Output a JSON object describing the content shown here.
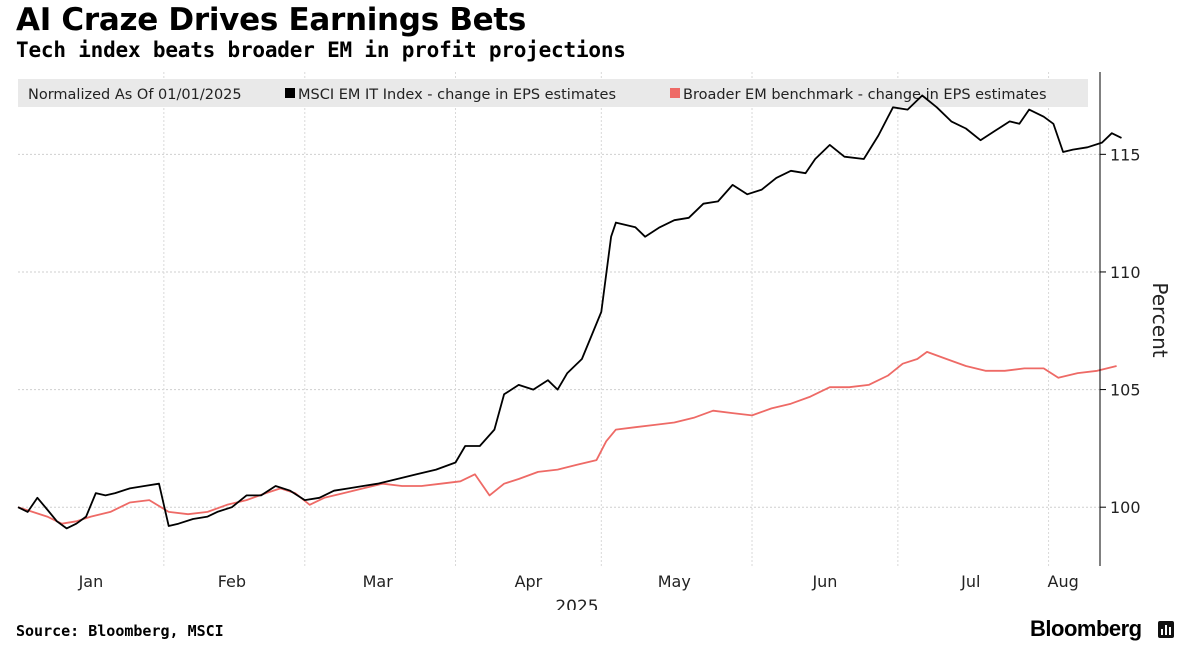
{
  "header": {
    "title": "AI Craze Drives Earnings Bets",
    "subtitle": "Tech index beats broader EM in profit projections"
  },
  "footer": {
    "source": "Source: Bloomberg, MSCI",
    "brand": "Bloomberg"
  },
  "chart_data": {
    "type": "line",
    "title": "AI Craze Drives Earnings Bets",
    "subtitle": "Tech index beats broader EM in profit projections",
    "legend_note": "Normalized As Of 01/01/2025",
    "legend_position": "top",
    "ylabel": "Percent",
    "xlabel": "2025",
    "ylim": [
      97.5,
      118.5
    ],
    "y_ticks": [
      100,
      105,
      110,
      115
    ],
    "x_range": [
      "2025-01-01",
      "2025-08-05"
    ],
    "x_ticks": [
      {
        "label": "Jan",
        "date": "2025-01-16"
      },
      {
        "label": "Feb",
        "date": "2025-02-14"
      },
      {
        "label": "Mar",
        "date": "2025-03-16"
      },
      {
        "label": "Apr",
        "date": "2025-04-16"
      },
      {
        "label": "May",
        "date": "2025-05-16"
      },
      {
        "label": "Jun",
        "date": "2025-06-16"
      },
      {
        "label": "Jul",
        "date": "2025-07-16"
      },
      {
        "label": "Aug",
        "date": "2025-08-04"
      }
    ],
    "grid": true,
    "series": [
      {
        "name": "MSCI EM IT Index - change in EPS estimates",
        "color": "#000000",
        "points": [
          [
            "2025-01-01",
            100.0
          ],
          [
            "2025-01-03",
            99.8
          ],
          [
            "2025-01-05",
            100.4
          ],
          [
            "2025-01-07",
            99.9
          ],
          [
            "2025-01-09",
            99.4
          ],
          [
            "2025-01-11",
            99.1
          ],
          [
            "2025-01-13",
            99.3
          ],
          [
            "2025-01-15",
            99.6
          ],
          [
            "2025-01-17",
            100.6
          ],
          [
            "2025-01-19",
            100.5
          ],
          [
            "2025-01-21",
            100.6
          ],
          [
            "2025-01-24",
            100.8
          ],
          [
            "2025-01-27",
            100.9
          ],
          [
            "2025-01-30",
            101.0
          ],
          [
            "2025-02-01",
            99.2
          ],
          [
            "2025-02-03",
            99.3
          ],
          [
            "2025-02-06",
            99.5
          ],
          [
            "2025-02-09",
            99.6
          ],
          [
            "2025-02-11",
            99.8
          ],
          [
            "2025-02-14",
            100.0
          ],
          [
            "2025-02-17",
            100.5
          ],
          [
            "2025-02-20",
            100.5
          ],
          [
            "2025-02-23",
            100.9
          ],
          [
            "2025-02-26",
            100.7
          ],
          [
            "2025-03-01",
            100.3
          ],
          [
            "2025-03-04",
            100.4
          ],
          [
            "2025-03-07",
            100.7
          ],
          [
            "2025-03-10",
            100.8
          ],
          [
            "2025-03-13",
            100.9
          ],
          [
            "2025-03-16",
            101.0
          ],
          [
            "2025-03-20",
            101.2
          ],
          [
            "2025-03-24",
            101.4
          ],
          [
            "2025-03-28",
            101.6
          ],
          [
            "2025-04-01",
            101.9
          ],
          [
            "2025-04-03",
            102.6
          ],
          [
            "2025-04-06",
            102.6
          ],
          [
            "2025-04-09",
            103.3
          ],
          [
            "2025-04-11",
            104.8
          ],
          [
            "2025-04-14",
            105.2
          ],
          [
            "2025-04-17",
            105.0
          ],
          [
            "2025-04-20",
            105.4
          ],
          [
            "2025-04-22",
            105.0
          ],
          [
            "2025-04-24",
            105.7
          ],
          [
            "2025-04-27",
            106.3
          ],
          [
            "2025-04-29",
            107.3
          ],
          [
            "2025-05-01",
            108.3
          ],
          [
            "2025-05-03",
            111.5
          ],
          [
            "2025-05-04",
            112.1
          ],
          [
            "2025-05-08",
            111.9
          ],
          [
            "2025-05-10",
            111.5
          ],
          [
            "2025-05-13",
            111.9
          ],
          [
            "2025-05-16",
            112.2
          ],
          [
            "2025-05-19",
            112.3
          ],
          [
            "2025-05-22",
            112.9
          ],
          [
            "2025-05-25",
            113.0
          ],
          [
            "2025-05-28",
            113.7
          ],
          [
            "2025-05-31",
            113.3
          ],
          [
            "2025-06-03",
            113.5
          ],
          [
            "2025-06-06",
            114.0
          ],
          [
            "2025-06-09",
            114.3
          ],
          [
            "2025-06-12",
            114.2
          ],
          [
            "2025-06-14",
            114.8
          ],
          [
            "2025-06-17",
            115.4
          ],
          [
            "2025-06-20",
            114.9
          ],
          [
            "2025-06-24",
            114.8
          ],
          [
            "2025-06-27",
            115.8
          ],
          [
            "2025-06-30",
            117.0
          ],
          [
            "2025-07-03",
            116.9
          ],
          [
            "2025-07-06",
            117.5
          ],
          [
            "2025-07-09",
            117.0
          ],
          [
            "2025-07-12",
            116.4
          ],
          [
            "2025-07-15",
            116.1
          ],
          [
            "2025-07-18",
            115.6
          ],
          [
            "2025-07-21",
            116.0
          ],
          [
            "2025-07-24",
            116.4
          ],
          [
            "2025-07-26",
            116.3
          ],
          [
            "2025-07-28",
            116.9
          ],
          [
            "2025-07-31",
            116.6
          ],
          [
            "2025-08-02",
            116.3
          ],
          [
            "2025-08-04",
            115.1
          ],
          [
            "2025-08-06",
            115.2
          ],
          [
            "2025-08-09",
            115.3
          ],
          [
            "2025-08-12",
            115.5
          ],
          [
            "2025-08-14",
            115.9
          ],
          [
            "2025-08-16",
            115.7
          ]
        ]
      },
      {
        "name": "Broader EM benchmark - change in EPS estimates",
        "color": "#ee6a66",
        "points": [
          [
            "2025-01-01",
            100.0
          ],
          [
            "2025-01-04",
            99.8
          ],
          [
            "2025-01-07",
            99.6
          ],
          [
            "2025-01-10",
            99.3
          ],
          [
            "2025-01-13",
            99.4
          ],
          [
            "2025-01-16",
            99.6
          ],
          [
            "2025-01-20",
            99.8
          ],
          [
            "2025-01-24",
            100.2
          ],
          [
            "2025-01-28",
            100.3
          ],
          [
            "2025-02-01",
            99.8
          ],
          [
            "2025-02-05",
            99.7
          ],
          [
            "2025-02-09",
            99.8
          ],
          [
            "2025-02-13",
            100.1
          ],
          [
            "2025-02-17",
            100.3
          ],
          [
            "2025-02-21",
            100.6
          ],
          [
            "2025-02-24",
            100.8
          ],
          [
            "2025-02-27",
            100.6
          ],
          [
            "2025-03-02",
            100.1
          ],
          [
            "2025-03-05",
            100.4
          ],
          [
            "2025-03-09",
            100.6
          ],
          [
            "2025-03-13",
            100.8
          ],
          [
            "2025-03-17",
            101.0
          ],
          [
            "2025-03-21",
            100.9
          ],
          [
            "2025-03-25",
            100.9
          ],
          [
            "2025-03-29",
            101.0
          ],
          [
            "2025-04-02",
            101.1
          ],
          [
            "2025-04-05",
            101.4
          ],
          [
            "2025-04-08",
            100.5
          ],
          [
            "2025-04-11",
            101.0
          ],
          [
            "2025-04-14",
            101.2
          ],
          [
            "2025-04-18",
            101.5
          ],
          [
            "2025-04-22",
            101.6
          ],
          [
            "2025-04-26",
            101.8
          ],
          [
            "2025-04-30",
            102.0
          ],
          [
            "2025-05-02",
            102.8
          ],
          [
            "2025-05-04",
            103.3
          ],
          [
            "2025-05-08",
            103.4
          ],
          [
            "2025-05-12",
            103.5
          ],
          [
            "2025-05-16",
            103.6
          ],
          [
            "2025-05-20",
            103.8
          ],
          [
            "2025-05-24",
            104.1
          ],
          [
            "2025-05-28",
            104.0
          ],
          [
            "2025-06-01",
            103.9
          ],
          [
            "2025-06-05",
            104.2
          ],
          [
            "2025-06-09",
            104.4
          ],
          [
            "2025-06-13",
            104.7
          ],
          [
            "2025-06-17",
            105.1
          ],
          [
            "2025-06-21",
            105.1
          ],
          [
            "2025-06-25",
            105.2
          ],
          [
            "2025-06-29",
            105.6
          ],
          [
            "2025-07-02",
            106.1
          ],
          [
            "2025-07-05",
            106.3
          ],
          [
            "2025-07-07",
            106.6
          ],
          [
            "2025-07-11",
            106.3
          ],
          [
            "2025-07-15",
            106.0
          ],
          [
            "2025-07-19",
            105.8
          ],
          [
            "2025-07-23",
            105.8
          ],
          [
            "2025-07-27",
            105.9
          ],
          [
            "2025-07-31",
            105.9
          ],
          [
            "2025-08-03",
            105.5
          ],
          [
            "2025-08-07",
            105.7
          ],
          [
            "2025-08-11",
            105.8
          ],
          [
            "2025-08-15",
            106.0
          ]
        ]
      }
    ]
  }
}
